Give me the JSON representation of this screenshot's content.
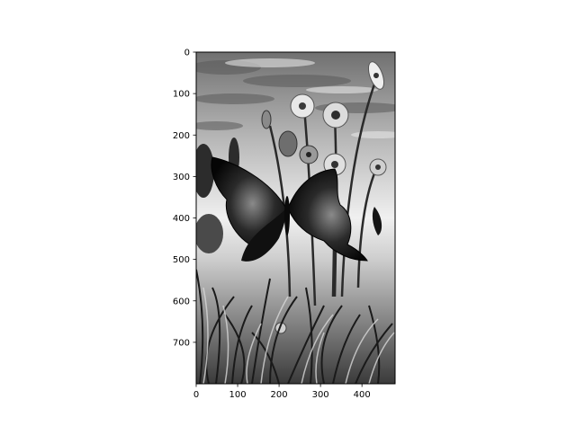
{
  "chart_data": {
    "type": "image",
    "colormap": "gray",
    "image_size": {
      "width": 480,
      "height": 800
    },
    "xlim": [
      0,
      480
    ],
    "ylim": [
      800,
      0
    ],
    "x_ticks": [
      0,
      100,
      200,
      300,
      400
    ],
    "y_ticks": [
      0,
      100,
      200,
      300,
      400,
      500,
      600,
      700
    ],
    "x_tick_labels": [
      "0",
      "100",
      "200",
      "300",
      "400"
    ],
    "y_tick_labels": [
      "0",
      "100",
      "200",
      "300",
      "400",
      "500",
      "600",
      "700"
    ],
    "title": "",
    "xlabel": "",
    "ylabel": "",
    "grid": false,
    "content": "grayscale photo: butterfly on flowers and grass under a cloudy sky"
  }
}
